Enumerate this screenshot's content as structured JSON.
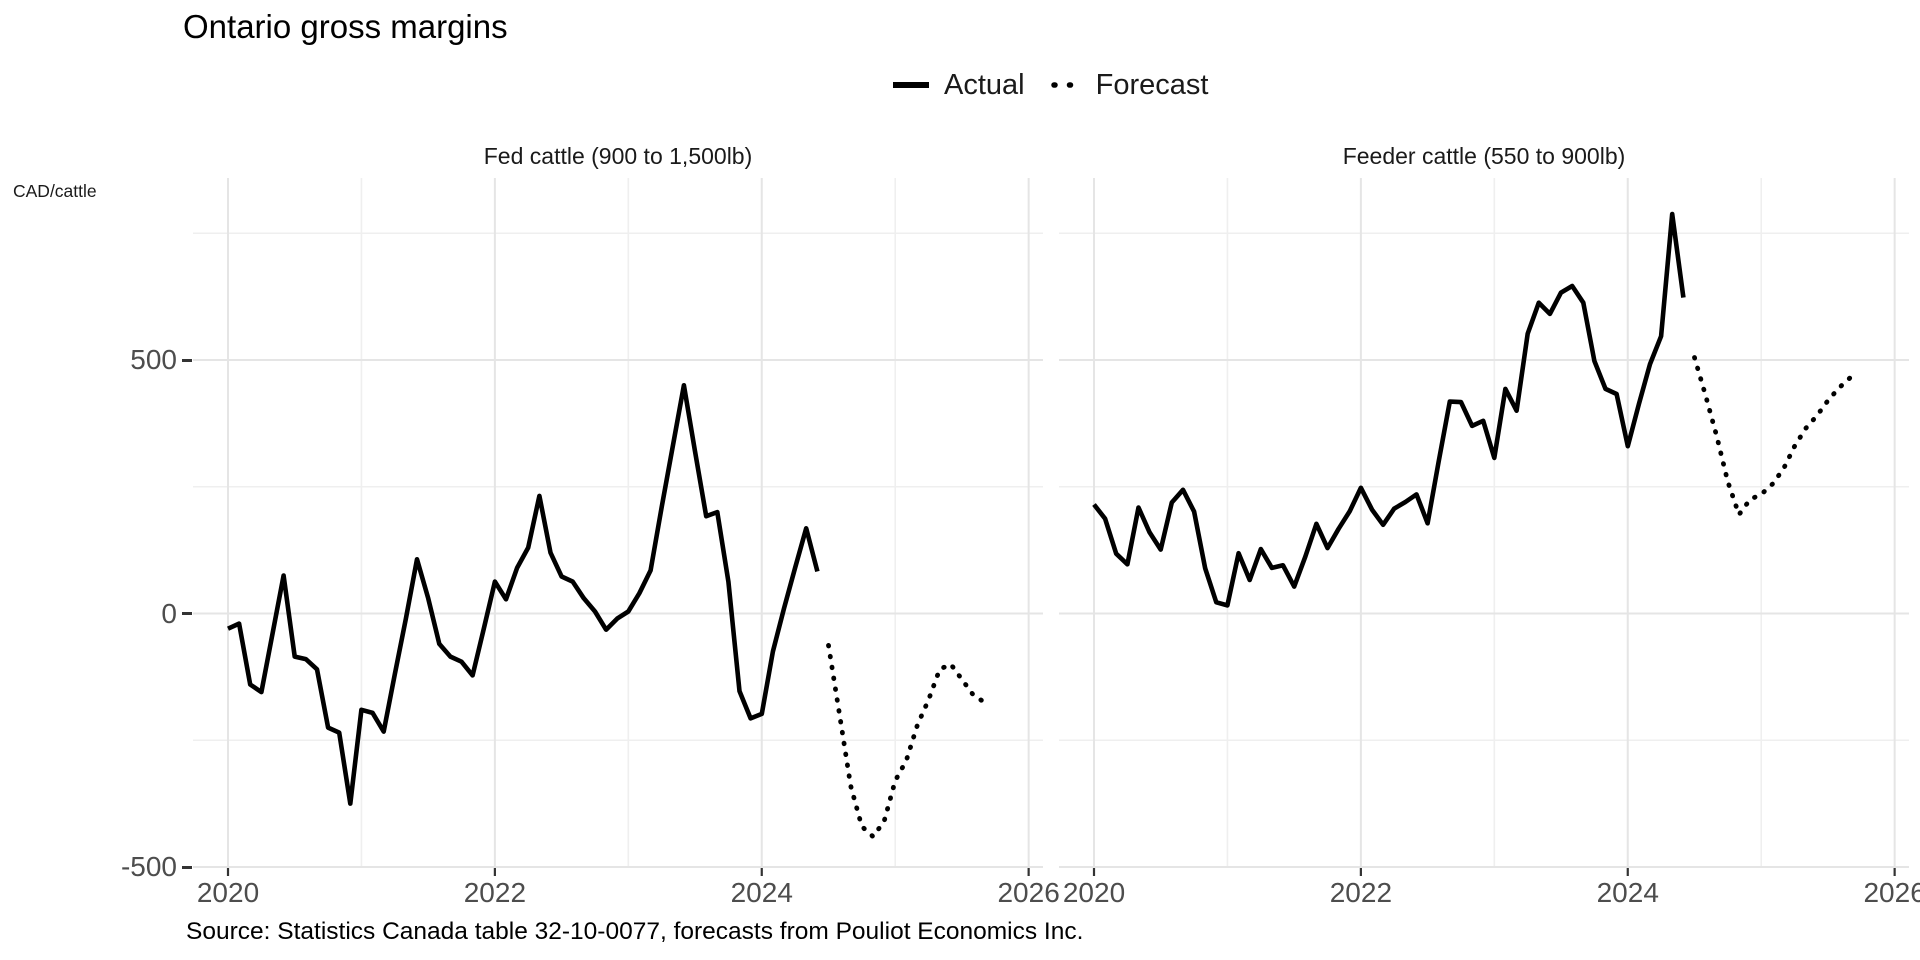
{
  "page": {
    "title": "Ontario gross margins",
    "y_axis_unit_label": "CAD/cattle",
    "source_note": "Source: Statistics Canada table 32-10-0077, forecasts from Pouliot Economics Inc."
  },
  "legend": {
    "items": [
      {
        "label": "Actual",
        "style": "solid"
      },
      {
        "label": "Forecast",
        "style": "dotted"
      }
    ]
  },
  "colors": {
    "line": "#000000",
    "grid_major": "#e5e5e5",
    "grid_minor": "#efefef",
    "axis_text": "#4d4d4d",
    "tick": "#333333",
    "background": "#ffffff"
  },
  "chart_data": [
    {
      "type": "line",
      "panel_title": "Fed cattle (900 to 1,500lb)",
      "x_unit": "month",
      "x_start_label": "2020-01",
      "actual_end_label": "2024-06",
      "forecast_start_label": "2024-07",
      "forecast_end_label": "2025-09",
      "x_ticks": [
        {
          "label": "2020",
          "month": 0
        },
        {
          "label": "2022",
          "month": 24
        },
        {
          "label": "2024",
          "month": 48
        },
        {
          "label": "2026",
          "month": 72
        }
      ],
      "x_minor_months": [
        12,
        36,
        60
      ],
      "y_ticks": [
        {
          "label": "500",
          "value": 500
        },
        {
          "label": "0",
          "value": 0
        },
        {
          "label": "-500",
          "value": -500
        }
      ],
      "y_minor_values": [
        750,
        250,
        -250
      ],
      "ylim": [
        -520,
        858
      ],
      "series": [
        {
          "name": "Actual",
          "style": "solid",
          "start_month": 0,
          "values": [
            -30,
            -20,
            -140,
            -155,
            -40,
            75,
            -85,
            -90,
            -110,
            -225,
            -235,
            -375,
            -190,
            -196,
            -233,
            -120,
            -10,
            107,
            30,
            -60,
            -85,
            -95,
            -122,
            -30,
            63,
            28,
            90,
            130,
            232,
            120,
            73,
            63,
            30,
            4,
            -32,
            -10,
            4,
            40,
            85,
            210,
            330,
            450,
            320,
            192,
            200,
            63,
            -153,
            -207,
            -198,
            -75,
            10,
            90,
            168,
            83
          ]
        },
        {
          "name": "Forecast",
          "style": "dotted",
          "start_month": 54,
          "values": [
            -63,
            -200,
            -340,
            -420,
            -440,
            -410,
            -330,
            -290,
            -220,
            -170,
            -110,
            -100,
            -130,
            -160,
            -175
          ]
        }
      ]
    },
    {
      "type": "line",
      "panel_title": "Feeder cattle (550 to 900lb)",
      "x_unit": "month",
      "x_start_label": "2020-01",
      "actual_end_label": "2024-06",
      "forecast_start_label": "2024-07",
      "forecast_end_label": "2025-09",
      "x_ticks": [
        {
          "label": "2020",
          "month": 0
        },
        {
          "label": "2022",
          "month": 24
        },
        {
          "label": "2024",
          "month": 48
        },
        {
          "label": "2026",
          "month": 72
        }
      ],
      "x_minor_months": [
        12,
        36,
        60
      ],
      "y_ticks": [
        {
          "label": "500",
          "value": 500
        },
        {
          "label": "0",
          "value": 0
        },
        {
          "label": "-500",
          "value": -500
        }
      ],
      "y_minor_values": [
        750,
        250,
        -250
      ],
      "ylim": [
        -520,
        858
      ],
      "series": [
        {
          "name": "Actual",
          "style": "solid",
          "start_month": 0,
          "values": [
            215,
            187,
            118,
            97,
            209,
            160,
            126,
            219,
            244,
            201,
            89,
            22,
            16,
            119,
            66,
            127,
            90,
            95,
            53,
            112,
            177,
            129,
            167,
            202,
            248,
            205,
            175,
            207,
            220,
            235,
            178,
            300,
            418,
            417,
            370,
            380,
            307,
            443,
            400,
            552,
            613,
            591,
            633,
            646,
            613,
            498,
            443,
            433,
            330,
            413,
            492,
            547,
            788,
            623
          ]
        },
        {
          "name": "Forecast",
          "style": "dotted",
          "start_month": 54,
          "values": [
            505,
            430,
            350,
            260,
            195,
            225,
            235,
            255,
            285,
            330,
            365,
            390,
            420,
            445,
            465
          ]
        }
      ]
    }
  ]
}
